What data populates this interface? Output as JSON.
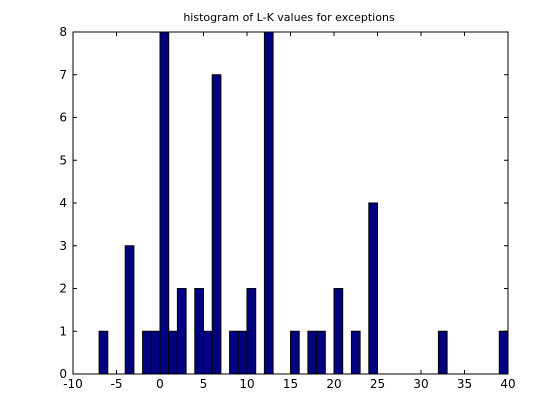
{
  "chart_data": {
    "type": "bar",
    "title": "histogram of L-K values for exceptions",
    "xlabel": "",
    "ylabel": "",
    "xlim": [
      -10,
      40
    ],
    "ylim": [
      0,
      8
    ],
    "bin_width": 1,
    "bar_color": "#000080",
    "edge_color": "#000000",
    "grid": false,
    "xticks": [
      "-10",
      "-5",
      "0",
      "5",
      "10",
      "15",
      "20",
      "25",
      "30",
      "35",
      "40"
    ],
    "yticks": [
      "0",
      "1",
      "2",
      "3",
      "4",
      "5",
      "6",
      "7",
      "8"
    ],
    "x": [
      -6.5,
      -3.5,
      -1.5,
      -0.5,
      0.5,
      1.5,
      2.5,
      4.5,
      5.5,
      6.5,
      8.5,
      9.5,
      10.5,
      12.5,
      15.5,
      17.5,
      18.5,
      20.5,
      22.5,
      24.5,
      32.5,
      39.5
    ],
    "values": [
      1,
      3,
      1,
      1,
      8,
      1,
      2,
      2,
      1,
      7,
      1,
      1,
      2,
      8,
      1,
      1,
      1,
      2,
      1,
      4,
      1,
      1
    ]
  }
}
